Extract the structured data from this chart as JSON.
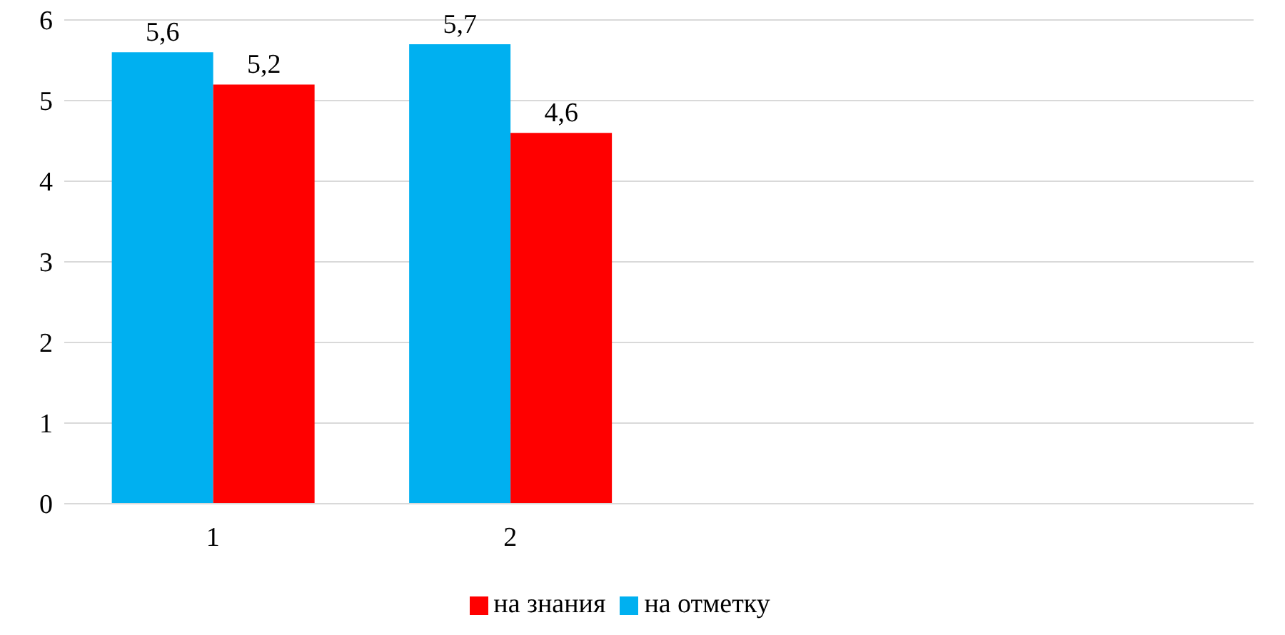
{
  "chart_data": {
    "type": "bar",
    "categories": [
      "1",
      "2",
      null,
      null
    ],
    "series": [
      {
        "name": "на отметку",
        "color": "#00b0f0",
        "values": [
          5.6,
          5.7,
          null,
          null
        ],
        "value_labels": [
          "5,6",
          "5,7",
          null,
          null
        ]
      },
      {
        "name": "на знания",
        "color": "#ff0000",
        "values": [
          5.2,
          4.6,
          null,
          null
        ],
        "value_labels": [
          "5,2",
          "4,6",
          null,
          null
        ]
      }
    ],
    "ylim": [
      0,
      6
    ],
    "yticks": [
      0,
      1,
      2,
      3,
      4,
      5,
      6
    ],
    "grid": "y",
    "legend": "bottom"
  }
}
